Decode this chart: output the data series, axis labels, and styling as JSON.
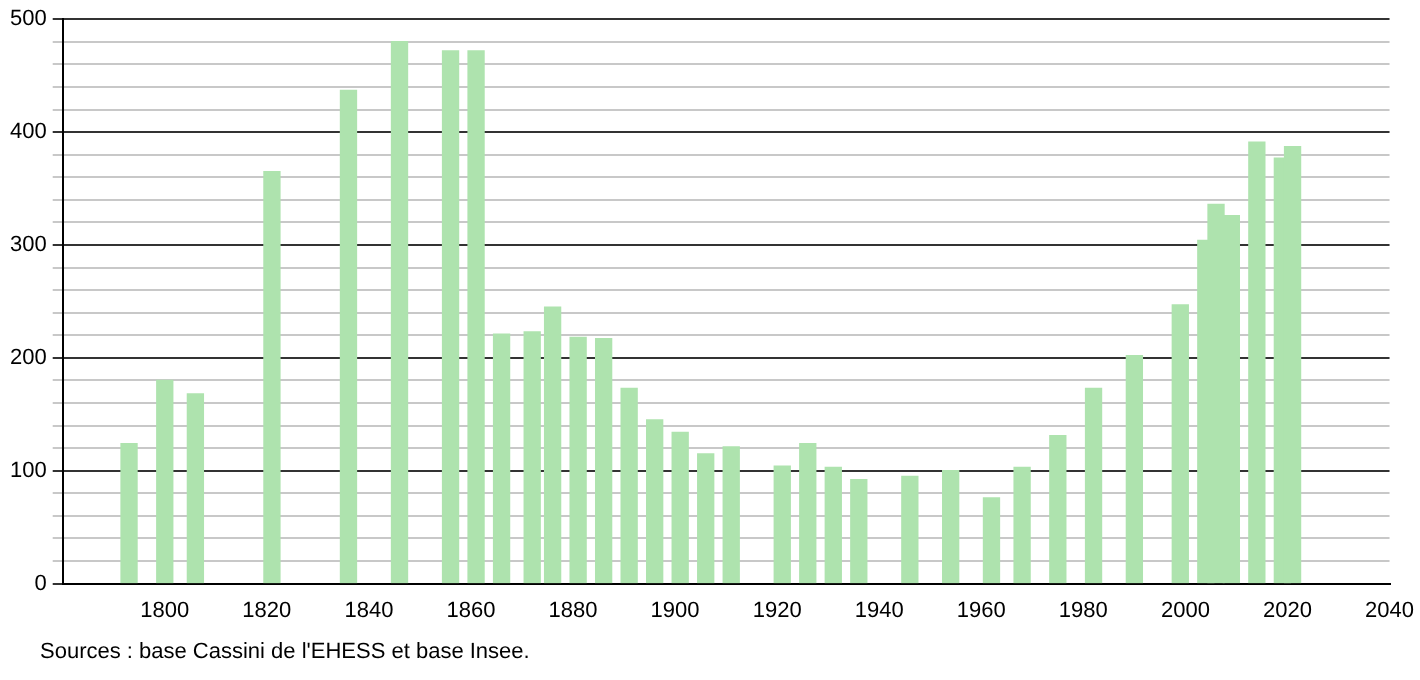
{
  "chart_data": {
    "type": "bar",
    "x": [
      1793,
      1800,
      1806,
      1821,
      1836,
      1846,
      1856,
      1861,
      1866,
      1872,
      1876,
      1881,
      1886,
      1891,
      1896,
      1901,
      1906,
      1911,
      1921,
      1926,
      1931,
      1936,
      1946,
      1954,
      1962,
      1968,
      1975,
      1982,
      1990,
      1999,
      2004,
      2006,
      2009,
      2014,
      2019,
      2021
    ],
    "values": [
      124,
      180,
      168,
      365,
      437,
      480,
      472,
      472,
      221,
      223,
      245,
      218,
      217,
      173,
      145,
      134,
      115,
      121,
      104,
      124,
      103,
      92,
      95,
      100,
      76,
      103,
      131,
      173,
      202,
      247,
      304,
      336,
      326,
      391,
      377,
      387
    ],
    "color": "#aee3ae",
    "xlim": [
      1780,
      2040
    ],
    "xticks": [
      1800,
      1820,
      1840,
      1860,
      1880,
      1900,
      1920,
      1940,
      1960,
      1980,
      2000,
      2020,
      2040
    ],
    "ylim": [
      0,
      500
    ],
    "yticks": [
      0,
      {
        "value": 20,
        "label": null
      },
      {
        "value": 40,
        "label": null
      },
      {
        "value": 60,
        "label": null
      },
      {
        "value": 80,
        "label": null
      },
      100,
      {
        "value": 120,
        "label": null
      },
      {
        "value": 140,
        "label": null
      },
      {
        "value": 160,
        "label": null
      },
      {
        "value": 180,
        "label": null
      },
      200,
      {
        "value": 220,
        "label": null
      },
      {
        "value": 240,
        "label": null
      },
      {
        "value": 260,
        "label": null
      },
      {
        "value": 280,
        "label": null
      },
      300,
      {
        "value": 320,
        "label": null
      },
      {
        "value": 340,
        "label": null
      },
      {
        "value": 360,
        "label": null
      },
      {
        "value": 380,
        "label": null
      },
      400,
      {
        "value": 420,
        "label": null
      },
      {
        "value": 440,
        "label": null
      },
      {
        "value": 460,
        "label": null
      },
      {
        "value": 480,
        "label": null
      },
      500
    ],
    "grid": "y",
    "annotations": [
      "Sources : base Cassini de l'EHESS et base Insee."
    ]
  }
}
